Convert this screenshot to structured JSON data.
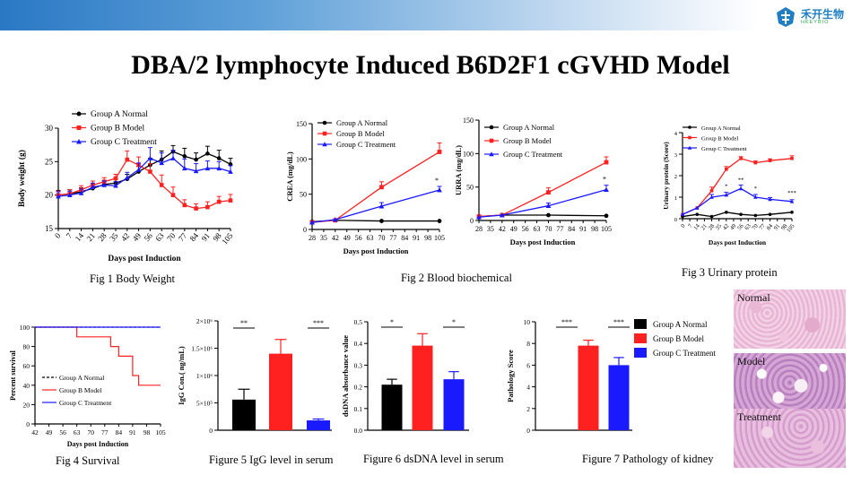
{
  "header": {
    "logo_text": "禾开生物",
    "logo_sub": "HKEYBIO"
  },
  "title": "DBA/2 lymphocyte Induced B6D2F1 cGVHD Model",
  "legend": {
    "a": "Group A Normal",
    "b": "Group B Model",
    "c": "Group C Treatment"
  },
  "colors": {
    "a": "#000000",
    "b": "#ff2020",
    "c": "#1a1aff"
  },
  "captions": {
    "fig1": "Fig 1 Body Weight",
    "fig2": "Fig 2 Blood biochemical",
    "fig3": "Fig 3 Urinary protein",
    "fig4": "Fig 4 Survival",
    "fig5": "Figure 5 IgG level in serum",
    "fig6": "Figure 6 dsDNA level in serum",
    "fig7": "Figure 7 Pathology of kidney"
  },
  "histology": {
    "normal": "Normal",
    "model": "Model",
    "treatment": "Treatment"
  },
  "chart_data": [
    {
      "type": "line",
      "xlabel": "Days post Induction",
      "ylabel": "Body weight (g)",
      "x": [
        0,
        7,
        14,
        21,
        28,
        35,
        42,
        49,
        56,
        63,
        70,
        77,
        84,
        91,
        98,
        105
      ],
      "xticks": [
        "0",
        "7",
        "14",
        "21",
        "28",
        "35",
        "42",
        "49",
        "56",
        "63",
        "70",
        "77",
        "84",
        "91",
        "98",
        "105"
      ],
      "ylim": [
        15,
        30
      ],
      "yticks": [
        15,
        20,
        25,
        30
      ],
      "series": [
        {
          "name": "Group A Normal",
          "values": [
            20.0,
            20.2,
            20.5,
            21.0,
            21.6,
            21.8,
            22.4,
            23.5,
            24.5,
            25.3,
            26.5,
            25.8,
            25.3,
            26.2,
            25.5,
            24.6
          ]
        },
        {
          "name": "Group B Model",
          "values": [
            20.0,
            20.2,
            20.8,
            21.5,
            22.0,
            22.5,
            25.3,
            24.5,
            23.5,
            21.5,
            20.0,
            18.5,
            18.0,
            18.2,
            19.0,
            19.2
          ]
        },
        {
          "name": "Group C Treatment",
          "values": [
            19.8,
            20.0,
            20.3,
            21.2,
            21.5,
            21.4,
            22.6,
            23.8,
            25.5,
            24.8,
            25.5,
            24.0,
            23.6,
            24.0,
            24.0,
            23.5
          ]
        }
      ]
    },
    {
      "type": "line",
      "xlabel": "Days post Induction",
      "ylabel": "CREA (mg/dL)",
      "x": [
        28,
        42,
        70,
        105
      ],
      "xticks": [
        "28",
        "35",
        "42",
        "49",
        "56",
        "63",
        "70",
        "77",
        "84",
        "91",
        "98",
        "105"
      ],
      "ylim": [
        0,
        150
      ],
      "yticks": [
        0,
        50,
        100,
        150
      ],
      "series": [
        {
          "name": "Group A Normal",
          "values": [
            11,
            13,
            12,
            12
          ]
        },
        {
          "name": "Group B Model",
          "values": [
            10,
            13,
            60,
            110
          ]
        },
        {
          "name": "Group C Treatment",
          "values": [
            10,
            14,
            33,
            56
          ]
        }
      ],
      "annotations": [
        "*"
      ]
    },
    {
      "type": "line",
      "xlabel": "Days post Induction",
      "ylabel": "URRA (mg/dL)",
      "x": [
        28,
        42,
        70,
        105
      ],
      "xticks": [
        "28",
        "35",
        "42",
        "49",
        "56",
        "63",
        "70",
        "77",
        "84",
        "91",
        "98",
        "105"
      ],
      "ylim": [
        0,
        150
      ],
      "yticks": [
        0,
        50,
        100,
        150
      ],
      "series": [
        {
          "name": "Group A Normal",
          "values": [
            6,
            8,
            8,
            7
          ]
        },
        {
          "name": "Group B Model",
          "values": [
            6,
            8,
            42,
            87
          ]
        },
        {
          "name": "Group C Treatment",
          "values": [
            5,
            8,
            22,
            46
          ]
        }
      ],
      "annotations": [
        "*"
      ]
    },
    {
      "type": "line",
      "xlabel": "Days post Induction",
      "ylabel": "Urinary protein (Score)",
      "x": [
        0,
        7,
        14,
        21,
        28,
        35,
        42,
        49,
        56,
        63,
        70,
        77,
        84,
        91,
        98,
        105
      ],
      "xticks": [
        "0",
        "7",
        "14",
        "21",
        "28",
        "35",
        "42",
        "49",
        "56",
        "63",
        "70",
        "77",
        "84",
        "91",
        "98",
        "105"
      ],
      "ylim": [
        0,
        4
      ],
      "yticks": [
        0,
        1,
        2,
        3,
        4
      ],
      "series": [
        {
          "name": "Group A Normal",
          "x": [
            0,
            14,
            28,
            42,
            56,
            70,
            84,
            105
          ],
          "values": [
            0.1,
            0.2,
            0.1,
            0.3,
            0.2,
            0.15,
            0.2,
            0.3
          ]
        },
        {
          "name": "Group B Model",
          "x": [
            0,
            14,
            28,
            42,
            56,
            70,
            84,
            105
          ],
          "values": [
            0.2,
            0.5,
            1.3,
            2.3,
            2.8,
            2.6,
            2.7,
            2.8
          ]
        },
        {
          "name": "Group C Treatment",
          "x": [
            0,
            14,
            28,
            42,
            56,
            70,
            84,
            105
          ],
          "values": [
            0.2,
            0.5,
            1.0,
            1.1,
            1.4,
            1.0,
            0.9,
            0.8
          ]
        }
      ],
      "annotations": [
        "*",
        "**",
        "*",
        "***"
      ]
    },
    {
      "type": "line",
      "xlabel": "Days post Induction",
      "ylabel": "Percent survival",
      "xticks": [
        "42",
        "49",
        "56",
        "63",
        "70",
        "77",
        "84",
        "91",
        "98",
        "105"
      ],
      "xlim": [
        42,
        105
      ],
      "ylim": [
        0,
        100
      ],
      "yticks": [
        0,
        20,
        40,
        60,
        80,
        100
      ],
      "series": [
        {
          "name": "Group A Normal",
          "x": [
            42,
            105
          ],
          "values": [
            100,
            100
          ]
        },
        {
          "name": "Group B Model",
          "x": [
            42,
            63,
            63,
            80,
            80,
            84,
            84,
            91,
            91,
            94,
            94,
            105
          ],
          "values": [
            100,
            100,
            90,
            90,
            80,
            80,
            70,
            70,
            50,
            50,
            40,
            40
          ]
        },
        {
          "name": "Group C Treatment",
          "x": [
            42,
            105
          ],
          "values": [
            100,
            100
          ]
        }
      ]
    },
    {
      "type": "bar",
      "ylabel": "IgG Con.( ng/mL)",
      "categories": [
        "Group A Normal",
        "Group B Model",
        "Group C Treatment"
      ],
      "values": [
        560000,
        1400000,
        180000
      ],
      "errors": [
        190000,
        260000,
        25000
      ],
      "ylim": [
        0,
        2000000
      ],
      "yticks": [
        "0",
        "5×10⁵",
        "1×10⁶",
        "1.5×10⁶",
        "2×10⁶"
      ],
      "annotations": [
        "**",
        "***"
      ]
    },
    {
      "type": "bar",
      "ylabel": "dsDNA  absorbance value",
      "categories": [
        "Group A Normal",
        "Group B Model",
        "Group C Treatment"
      ],
      "values": [
        0.21,
        0.39,
        0.235
      ],
      "errors": [
        0.025,
        0.055,
        0.035
      ],
      "ylim": [
        0,
        0.5
      ],
      "yticks": [
        "0.0",
        "0.1",
        "0.2",
        "0.3",
        "0.4",
        "0.5"
      ],
      "annotations": [
        "*",
        "*"
      ]
    },
    {
      "type": "bar",
      "ylabel": "Pathology Score",
      "categories": [
        "Group A Normal",
        "Group B Model",
        "Group C Treatment"
      ],
      "values": [
        0,
        7.8,
        6.0
      ],
      "errors": [
        0,
        0.5,
        0.7
      ],
      "ylim": [
        0,
        10
      ],
      "yticks": [
        "0",
        "2",
        "4",
        "6",
        "8",
        "10"
      ],
      "annotations": [
        "***",
        "***"
      ]
    }
  ]
}
